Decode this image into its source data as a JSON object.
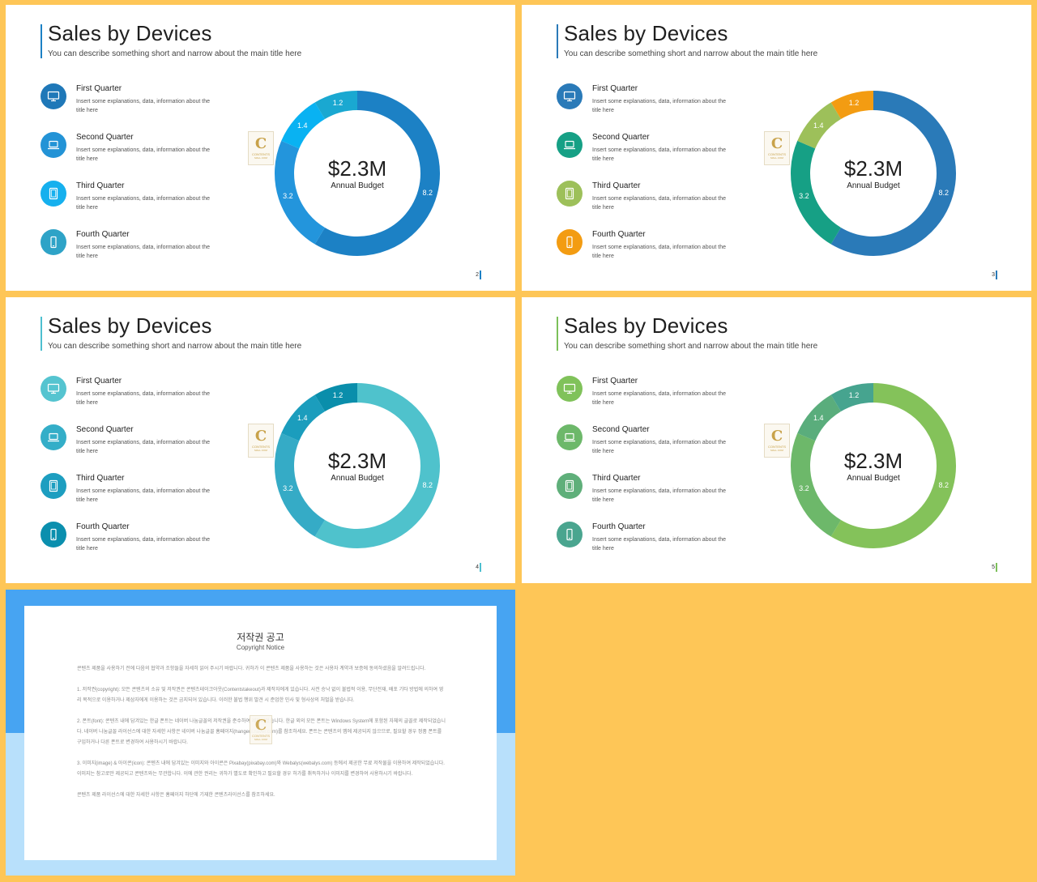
{
  "slides": [
    {
      "title": "Sales by Devices",
      "subtitle": "You can describe something short and narrow about the main title here",
      "page": "2",
      "accent": "#1c81c5",
      "quarters": [
        {
          "label": "First Quarter",
          "desc": "Insert some explanations, data, information about the title here",
          "icon": "monitor-icon",
          "color": "#1f78b8"
        },
        {
          "label": "Second Quarter",
          "desc": "Insert some explanations, data, information about the title here",
          "icon": "laptop-icon",
          "color": "#2393d6"
        },
        {
          "label": "Third Quarter",
          "desc": "Insert some explanations, data, information about the title here",
          "icon": "tablet-icon",
          "color": "#16b0ee"
        },
        {
          "label": "Fourth Quarter",
          "desc": "Insert some explanations, data, information about the title here",
          "icon": "phone-icon",
          "color": "#2ea3c7"
        }
      ],
      "center_value": "$2.3M",
      "center_label": "Annual Budget",
      "segment_colors": [
        "#1c81c5",
        "#2395dc",
        "#09b2f2",
        "#1aa8d1"
      ]
    },
    {
      "title": "Sales by Devices",
      "subtitle": "You can describe something short and narrow about the main title here",
      "page": "3",
      "accent": "#2a7ab8",
      "quarters": [
        {
          "label": "First Quarter",
          "desc": "Insert some explanations, data, information about the title here",
          "icon": "monitor-icon",
          "color": "#2a7ab8"
        },
        {
          "label": "Second Quarter",
          "desc": "Insert some explanations, data, information about the title here",
          "icon": "laptop-icon",
          "color": "#16a085"
        },
        {
          "label": "Third Quarter",
          "desc": "Insert some explanations, data, information about the title here",
          "icon": "tablet-icon",
          "color": "#9dc05a"
        },
        {
          "label": "Fourth Quarter",
          "desc": "Insert some explanations, data, information about the title here",
          "icon": "phone-icon",
          "color": "#f39c12"
        }
      ],
      "center_value": "$2.3M",
      "center_label": "Annual Budget",
      "segment_colors": [
        "#2a7ab8",
        "#16a085",
        "#9dc05a",
        "#f39c12"
      ]
    },
    {
      "title": "Sales by Devices",
      "subtitle": "You can describe something short and narrow about the main title here",
      "page": "4",
      "accent": "#4dbfd0",
      "quarters": [
        {
          "label": "First Quarter",
          "desc": "Insert some explanations, data, information about the title here",
          "icon": "monitor-icon",
          "color": "#55c4d0"
        },
        {
          "label": "Second Quarter",
          "desc": "Insert some explanations, data, information about the title here",
          "icon": "laptop-icon",
          "color": "#34aec8"
        },
        {
          "label": "Third Quarter",
          "desc": "Insert some explanations, data, information about the title here",
          "icon": "tablet-icon",
          "color": "#1d9ec0"
        },
        {
          "label": "Fourth Quarter",
          "desc": "Insert some explanations, data, information about the title here",
          "icon": "phone-icon",
          "color": "#0b8fae"
        }
      ],
      "center_value": "$2.3M",
      "center_label": "Annual Budget",
      "segment_colors": [
        "#4fc2cc",
        "#35abc6",
        "#1b9dbd",
        "#0a8eab"
      ]
    },
    {
      "title": "Sales by Devices",
      "subtitle": "You can describe something short and narrow about the main title here",
      "page": "5",
      "accent": "#7cc05a",
      "quarters": [
        {
          "label": "First Quarter",
          "desc": "Insert some explanations, data, information about the title here",
          "icon": "monitor-icon",
          "color": "#80c25a"
        },
        {
          "label": "Second Quarter",
          "desc": "Insert some explanations, data, information about the title here",
          "icon": "laptop-icon",
          "color": "#6db86a"
        },
        {
          "label": "Third Quarter",
          "desc": "Insert some explanations, data, information about the title here",
          "icon": "tablet-icon",
          "color": "#5faf7a"
        },
        {
          "label": "Fourth Quarter",
          "desc": "Insert some explanations, data, information about the title here",
          "icon": "phone-icon",
          "color": "#4aa58f"
        }
      ],
      "center_value": "$2.3M",
      "center_label": "Annual Budget",
      "segment_colors": [
        "#84c25a",
        "#6db86a",
        "#5aad7c",
        "#46a48f"
      ]
    }
  ],
  "chart_data": {
    "type": "pie",
    "categories": [
      "First Quarter",
      "Second Quarter",
      "Third Quarter",
      "Fourth Quarter"
    ],
    "values": [
      8.2,
      3.2,
      1.4,
      1.2
    ],
    "title": "",
    "center_value": "$2.3M",
    "center_label": "Annual Budget"
  },
  "logo": {
    "letter": "C",
    "line1": "CONTENTS",
    "line2": "MALL.COM"
  },
  "notice": {
    "title": "저작권 공고",
    "subtitle": "Copyright Notice",
    "paragraphs": [
      "콘텐츠 제품을 사용하기 전에 다음의 협약과 조항들을 자세히 읽어 주시기 바랍니다. 귀하가 이 콘텐츠 제품을 사용하는 것은 사용자 계약과 보증에 동의하셨음을 알려드립니다.",
      "1. 저작권(copyright): 모든 콘텐츠의 소유 및 저작권은 콘텐츠테이크아웃(Contentstakeout)과 제작자에게 있습니다. 사전 승낙 없이 불법적 이용, 무단전재, 배포 기타 방법에 의하여 영리 목적으로 이용하거나 제삼자에게 이용하는 것은 금지되어 있습니다. 이러한 불법 행위 발견 시 준엄한 민사 및 형사상의 처벌을 받습니다.",
      "2. 폰트(font): 콘텐츠 내에 담겨있는 한글 폰트는 네이버 나눔글꼴의 저작권을 준수하여 제작되었습니다. 한글 외의 모든 폰트는 Windows System에 포함된 자체의 글꼴로 제작되었습니다. 네이버 나눔글꼴 라이선스에 대한 자세한 사항은 네이버 나눔글꼴 홈페이지(hangeul.naver.com)를 참조하세요. 폰트는 콘텐츠의 맵에 제공되지 않으므로, 필요할 경우 정품 폰트를 구입하거나 다른 폰트로 변경하여 사용하시기 바랍니다.",
      "3. 이미지(image) & 아이콘(icon): 콘텐츠 내에 담겨있는 이미지와 아이콘은 Pixabay(pixabay.com)와 Webalys(webalys.com) 등에서 제공한 무료 저작물을 이용하여 제작되었습니다. 이미지는 참고로만 제공되고 콘텐츠와는 무관합니다. 이에 관한 권리는 귀하가 별도로 확인하고 필요할 경우 허가를 취득하거나 이미지를 변경하여 사용하시기 바랍니다.",
      "콘텐츠 제품 라이선스에 대한 자세한 사항은 홈페이지 하단에 기재한 콘텐츠라이선스를 참조하세요."
    ]
  }
}
